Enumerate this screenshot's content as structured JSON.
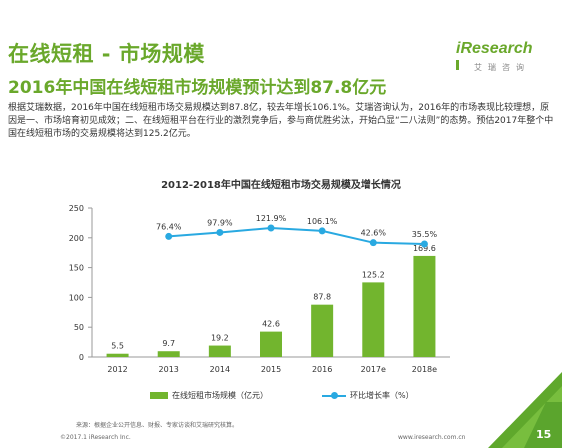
{
  "header": {
    "title": "在线短租 - 市场规模",
    "subtitle": "2016年中国在线短租市场规模预计达到87.8亿元",
    "brand": "iResearch",
    "brand_sub": "艾瑞咨询",
    "brand_color": "#6aa82b"
  },
  "description": "根据艾瑞数据，2016年中国在线短租市场交易规模达到87.8亿，较去年增长106.1%。艾瑞咨询认为，2016年的市场表现比较理想，原因是一、市场培育初见成效；二、在线短租平台在行业的激烈竞争后，参与商优胜劣汰，开始凸显“二八法则”的态势。预估2017年整个中国在线短租市场的交易规模将达到125.2亿元。",
  "chart_data": {
    "type": "bar",
    "title": "2012-2018年中国在线短租市场交易规模及增长情况",
    "categories": [
      "2012",
      "2013",
      "2014",
      "2015",
      "2016",
      "2017e",
      "2018e"
    ],
    "ylim": [
      0,
      250
    ],
    "yticks": [
      0,
      50,
      100,
      150,
      200,
      250
    ],
    "series": [
      {
        "name": "在线短租市场规模（亿元）",
        "type": "bar",
        "color": "#72b52e",
        "values": [
          5.5,
          9.7,
          19.2,
          42.6,
          87.8,
          125.2,
          169.6
        ],
        "labels": [
          "5.5",
          "9.7",
          "19.2",
          "42.6",
          "87.8",
          "125.2",
          "169.6"
        ]
      },
      {
        "name": "环比增长率（%）",
        "type": "line",
        "color": "#29a9e1",
        "values": [
          null,
          76.4,
          97.9,
          121.9,
          106.1,
          42.6,
          35.5
        ],
        "labels": [
          "",
          "76.4%",
          "97.9%",
          "121.9%",
          "106.1%",
          "42.6%",
          "35.5%"
        ]
      }
    ],
    "grid": false,
    "legend_position": "bottom"
  },
  "source": "来源：根据企业公开信息、财报、专家访谈和艾瑞研究核算。",
  "footer": {
    "copyright": "©2017.1 iResearch Inc.",
    "website": "www.iresearch.com.cn",
    "page_number": "15"
  }
}
